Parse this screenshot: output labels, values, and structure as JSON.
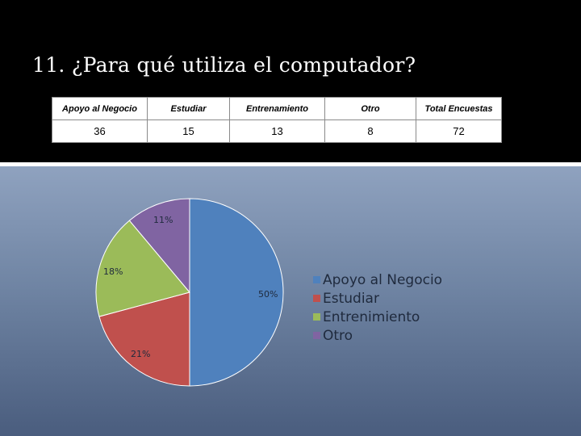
{
  "title": "11. ¿Para qué utiliza el computador?",
  "table": {
    "headers": [
      "Apoyo al Negocio",
      "Estudiar",
      "Entrenamiento",
      "Otro",
      "Total Encuestas"
    ],
    "values": [
      "36",
      "15",
      "13",
      "8",
      "72"
    ]
  },
  "chart_data": {
    "type": "pie",
    "categories": [
      "Apoyo al Negocio",
      "Estudiar",
      "Entrenimiento",
      "Otro"
    ],
    "values": [
      36,
      15,
      13,
      8
    ],
    "percent_labels": [
      "50%",
      "21%",
      "18%",
      "11%"
    ],
    "colors": [
      "#4f81bd",
      "#c0504d",
      "#9bbb59",
      "#8064a2"
    ],
    "legend_position": "right"
  }
}
